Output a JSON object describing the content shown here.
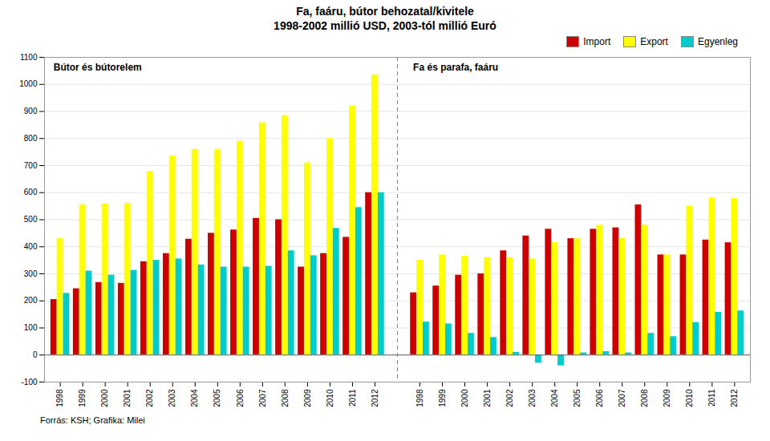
{
  "chart_data": {
    "type": "bar",
    "title": "Fa, faáru, bútor behozatal/kivitele\n1998-2002 millió USD, 2003-tól millió Euró",
    "annotations": [
      "Bútor és bútorelem",
      "Fa és parafa, faáru"
    ],
    "caption": "Forrás: KSH; Grafika: Milei",
    "categories": [
      "1998",
      "1999",
      "2000",
      "2001",
      "2002",
      "2003",
      "2004",
      "2005",
      "2006",
      "2007",
      "2008",
      "2009",
      "2010",
      "2011",
      "2012",
      null,
      "1998",
      "1999",
      "2000",
      "2001",
      "2002",
      "2003",
      "2004",
      "2005",
      "2006",
      "2007",
      "2008",
      "2009",
      "2010",
      "2011",
      "2012"
    ],
    "series": [
      {
        "name": "Import",
        "color": "#CC0000",
        "values": [
          205,
          245,
          268,
          265,
          345,
          375,
          428,
          450,
          462,
          505,
          500,
          325,
          375,
          435,
          600,
          null,
          230,
          255,
          295,
          300,
          385,
          440,
          465,
          430,
          465,
          470,
          555,
          370,
          370,
          425,
          415
        ]
      },
      {
        "name": "Export",
        "color": "#FFFF00",
        "values": [
          430,
          555,
          558,
          560,
          678,
          735,
          760,
          760,
          790,
          858,
          885,
          710,
          800,
          920,
          1035,
          null,
          350,
          370,
          365,
          360,
          360,
          355,
          415,
          430,
          480,
          430,
          480,
          370,
          550,
          580,
          578
        ]
      },
      {
        "name": "Egyenleg",
        "color": "#00CCCC",
        "values": [
          228,
          310,
          295,
          313,
          350,
          355,
          333,
          325,
          325,
          328,
          385,
          367,
          468,
          545,
          600,
          null,
          122,
          115,
          80,
          65,
          10,
          -30,
          -40,
          8,
          13,
          8,
          80,
          68,
          120,
          158,
          163
        ]
      }
    ],
    "ylim": [
      -100,
      1100
    ],
    "yticks": [
      -100,
      0,
      100,
      200,
      300,
      400,
      500,
      600,
      700,
      800,
      900,
      1000,
      1100
    ],
    "grid": true,
    "legend": "upper right"
  }
}
